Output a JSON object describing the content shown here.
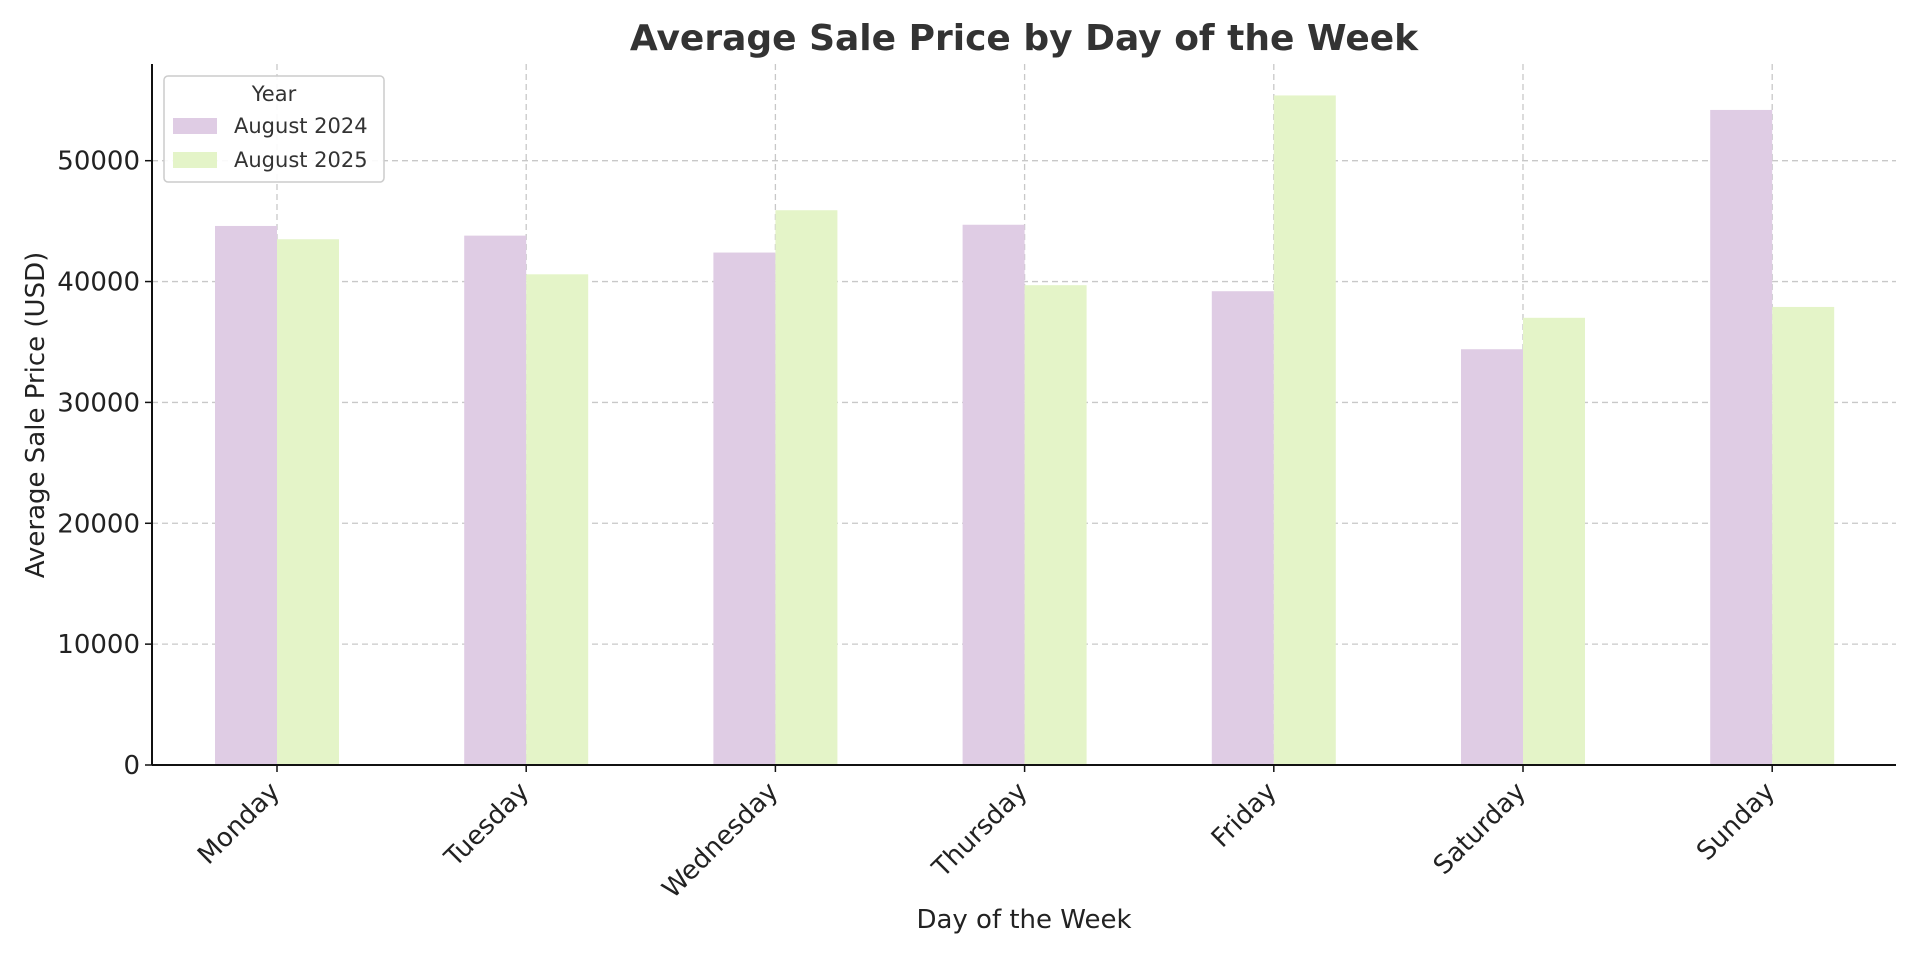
{
  "chart_data": {
    "type": "bar",
    "title": "Average Sale Price by Day of the Week",
    "xlabel": "Day of the Week",
    "ylabel": "Average Sale Price (USD)",
    "categories": [
      "Monday",
      "Tuesday",
      "Wednesday",
      "Thursday",
      "Friday",
      "Saturday",
      "Sunday"
    ],
    "series": [
      {
        "name": "August 2024",
        "color": "#dfcce4",
        "values": [
          44600,
          43800,
          42400,
          44700,
          39200,
          34400,
          54200
        ]
      },
      {
        "name": "August 2025",
        "color": "#e4f4c8",
        "values": [
          43500,
          40600,
          45900,
          39700,
          55400,
          37000,
          37900
        ]
      }
    ],
    "ylim": [
      0,
      58000
    ],
    "yticks": [
      0,
      10000,
      20000,
      30000,
      40000,
      50000
    ],
    "grid": true,
    "legend": {
      "title": "Year",
      "placement": "top-left"
    }
  }
}
